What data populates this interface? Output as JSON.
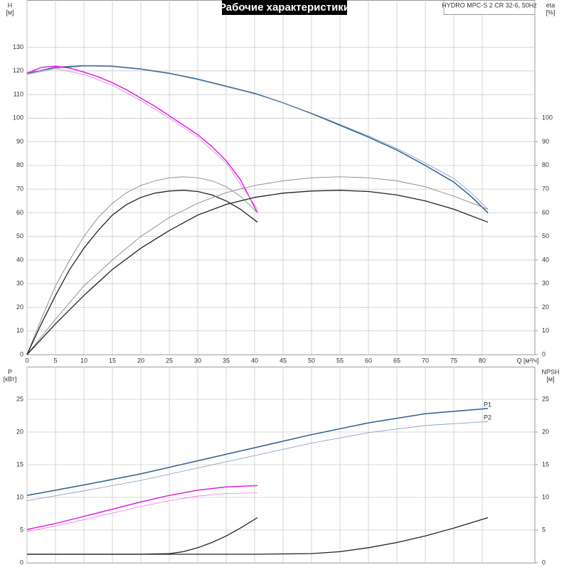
{
  "chart_data": [
    {
      "type": "line",
      "title": "Рабочие характеристики",
      "model": "HYDRO MPC-S 2 CR 32-6, 50Hz",
      "y_label": "H",
      "y_unit": "[м]",
      "y2_label": "eta",
      "y2_unit": "[%]",
      "x_label": "Q [м³/ч]",
      "xlim": [
        0,
        89.25
      ],
      "xticks": [
        0,
        5,
        10,
        15,
        20,
        25,
        30,
        35,
        40,
        45,
        50,
        55,
        60,
        65,
        70,
        75,
        80
      ],
      "ylim": [
        0,
        150
      ],
      "yticks": [
        0,
        10,
        20,
        30,
        40,
        50,
        60,
        70,
        80,
        90,
        100,
        110,
        120,
        130
      ],
      "y2lim": [
        0,
        150
      ],
      "y2ticks": [
        0,
        10,
        20,
        30,
        40,
        50,
        60,
        70,
        80,
        90,
        100
      ],
      "grid": true,
      "series": [
        {
          "color": "#2d5d8f",
          "line_width": 1.5,
          "x": [
            0,
            5,
            10,
            15,
            20,
            25,
            30,
            35,
            40,
            45,
            50,
            55,
            60,
            65,
            70,
            75,
            78,
            81
          ],
          "values": [
            119,
            121.5,
            122.2,
            122,
            120.8,
            119,
            116.5,
            113.5,
            110.5,
            106.5,
            102,
            97,
            92,
            86.5,
            80,
            73,
            67,
            60
          ]
        },
        {
          "color": "#7d98c0",
          "line_width": 0.8,
          "x": [
            0,
            5,
            10,
            15,
            20,
            25,
            30,
            35,
            40,
            45,
            50,
            55,
            60,
            65,
            70,
            75,
            78,
            81
          ],
          "values": [
            118.5,
            121,
            122,
            121.8,
            120.6,
            118.8,
            116.3,
            113.3,
            110.3,
            106.5,
            102.2,
            97.4,
            92.5,
            87.2,
            81,
            74.5,
            68.5,
            61.5
          ]
        },
        {
          "color": "#e020e0",
          "line_width": 1.5,
          "x": [
            0,
            2.5,
            5,
            7.5,
            10,
            12.5,
            15,
            17.5,
            20,
            22.5,
            25,
            27.5,
            30,
            32.5,
            35,
            37.5,
            40.5
          ],
          "values": [
            119,
            121.5,
            122,
            121.2,
            119.5,
            117.5,
            115,
            112,
            108.5,
            105,
            101,
            97,
            93,
            88,
            82,
            74,
            60
          ]
        },
        {
          "color": "#e878e8",
          "line_width": 0.8,
          "x": [
            0,
            5,
            10,
            15,
            20,
            25,
            30,
            35,
            40.5
          ],
          "values": [
            119.5,
            121,
            118.5,
            114,
            107.5,
            100,
            92,
            81,
            61.5
          ]
        },
        {
          "color": "#888888",
          "line_width": 0.9,
          "axis": "y2",
          "x": [
            0,
            2.5,
            5,
            7.5,
            10,
            12.5,
            15,
            17.5,
            20,
            22.5,
            25,
            27.5,
            30,
            32.5,
            35,
            37.5,
            40.5
          ],
          "values": [
            0,
            15,
            29,
            40,
            50,
            58,
            64,
            68.5,
            71.5,
            73.5,
            74.8,
            75.2,
            74.8,
            73.5,
            71,
            67,
            60
          ]
        },
        {
          "color": "#222222",
          "line_width": 1.3,
          "axis": "y2",
          "x": [
            0,
            2.5,
            5,
            7.5,
            10,
            12.5,
            15,
            17.5,
            20,
            22.5,
            25,
            27.5,
            30,
            32.5,
            35,
            37.5,
            40.5
          ],
          "values": [
            0,
            13,
            25,
            36,
            45,
            52.5,
            59,
            63.5,
            66.5,
            68.3,
            69.2,
            69.5,
            69,
            67.5,
            65,
            61.5,
            56
          ]
        },
        {
          "color": "#888888",
          "line_width": 0.9,
          "axis": "y2",
          "x": [
            0,
            5,
            10,
            15,
            20,
            25,
            30,
            35,
            40,
            45,
            50,
            55,
            60,
            65,
            70,
            75,
            81
          ],
          "values": [
            0,
            15,
            29,
            40,
            50,
            58,
            64,
            68.5,
            71.5,
            73.5,
            74.8,
            75.2,
            74.8,
            73.5,
            71,
            67,
            61.5
          ]
        },
        {
          "color": "#222222",
          "line_width": 1.3,
          "axis": "y2",
          "x": [
            0,
            5,
            10,
            15,
            20,
            25,
            30,
            35,
            40,
            45,
            50,
            55,
            60,
            65,
            70,
            75,
            81
          ],
          "values": [
            0,
            13,
            25,
            36,
            45,
            52.5,
            59,
            63.5,
            66.5,
            68.3,
            69.2,
            69.5,
            69,
            67.5,
            65,
            61.5,
            56
          ]
        }
      ]
    },
    {
      "type": "line",
      "y_label": "P",
      "y_unit": "[кВт]",
      "y2_label": "NPSH",
      "y2_unit": "[м]",
      "xlim": [
        0,
        89.25
      ],
      "ylim": [
        0,
        30
      ],
      "yticks": [
        0,
        5,
        10,
        15,
        20,
        25
      ],
      "y2lim": [
        0,
        30
      ],
      "y2ticks": [
        0,
        5,
        10,
        15,
        20,
        25
      ],
      "grid": true,
      "series": [
        {
          "name": "P1",
          "color": "#2d5d8f",
          "line_width": 1.5,
          "x": [
            0,
            10,
            20,
            30,
            40,
            50,
            60,
            70,
            81
          ],
          "values": [
            10.3,
            11.9,
            13.6,
            15.6,
            17.6,
            19.6,
            21.4,
            22.8,
            23.6
          ]
        },
        {
          "name": "P2",
          "color": "#7d98c0",
          "line_width": 0.8,
          "x": [
            0,
            10,
            20,
            30,
            40,
            50,
            60,
            70,
            81
          ],
          "values": [
            9.5,
            11,
            12.6,
            14.5,
            16.4,
            18.3,
            19.9,
            21,
            21.6
          ]
        },
        {
          "color": "#e020e0",
          "line_width": 1.5,
          "x": [
            0,
            5,
            10,
            15,
            20,
            25,
            30,
            35,
            40.5
          ],
          "values": [
            5.1,
            6,
            7.1,
            8.2,
            9.3,
            10.3,
            11.1,
            11.6,
            11.8
          ]
        },
        {
          "color": "#e878e8",
          "line_width": 0.8,
          "x": [
            0,
            5,
            10,
            15,
            20,
            25,
            30,
            35,
            40.5
          ],
          "values": [
            4.8,
            5.6,
            6.6,
            7.6,
            8.6,
            9.5,
            10.2,
            10.6,
            10.7
          ]
        },
        {
          "color": "#222222",
          "line_width": 1.3,
          "axis": "y2",
          "x": [
            0,
            15,
            20,
            25,
            27.5,
            30,
            32.5,
            35,
            37.5,
            40.5
          ],
          "values": [
            1.3,
            1.3,
            1.3,
            1.4,
            1.7,
            2.3,
            3.1,
            4.1,
            5.3,
            6.9
          ]
        },
        {
          "color": "#222222",
          "line_width": 1.3,
          "axis": "y2",
          "x": [
            0,
            40,
            50,
            55,
            60,
            65,
            70,
            75,
            81
          ],
          "values": [
            1.3,
            1.3,
            1.4,
            1.7,
            2.3,
            3.1,
            4.1,
            5.3,
            6.9
          ]
        }
      ]
    }
  ]
}
